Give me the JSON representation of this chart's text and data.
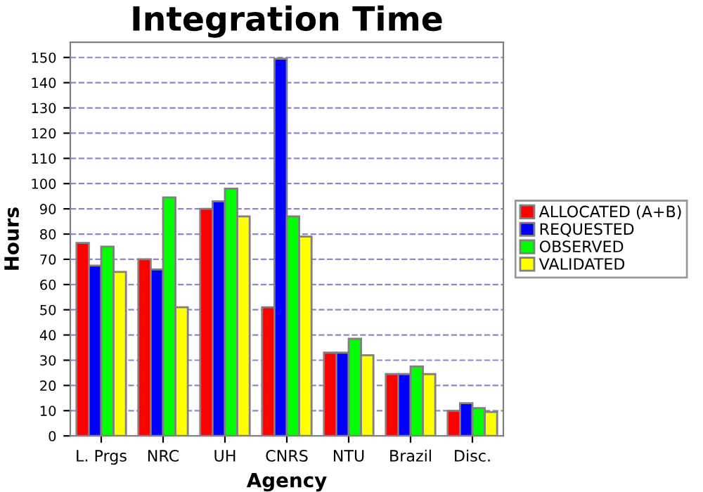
{
  "chart_data": {
    "type": "bar",
    "title": "Integration Time",
    "xlabel": "Agency",
    "ylabel": "Hours",
    "categories": [
      "L. Prgs",
      "NRC",
      "UH",
      "CNRS",
      "NTU",
      "Brazil",
      "Disc."
    ],
    "series": [
      {
        "name": "ALLOCATED (A+B)",
        "color": "#ff0000",
        "values": [
          76.5,
          70,
          90,
          51,
          33,
          24.5,
          10
        ]
      },
      {
        "name": "REQUESTED",
        "color": "#0000ff",
        "values": [
          67.5,
          66,
          93,
          149.5,
          33,
          24.5,
          13
        ]
      },
      {
        "name": "OBSERVED",
        "color": "#00ff00",
        "values": [
          75,
          94.5,
          98,
          87,
          38.5,
          27.5,
          11
        ]
      },
      {
        "name": "VALIDATED",
        "color": "#ffff00",
        "values": [
          65,
          51,
          87,
          79,
          32,
          24.5,
          9.5
        ]
      }
    ],
    "ylim": [
      0,
      156
    ],
    "yticks": [
      0,
      10,
      20,
      30,
      40,
      50,
      60,
      70,
      80,
      90,
      100,
      110,
      120,
      130,
      140,
      150
    ],
    "grid": "y",
    "legend": "right"
  }
}
